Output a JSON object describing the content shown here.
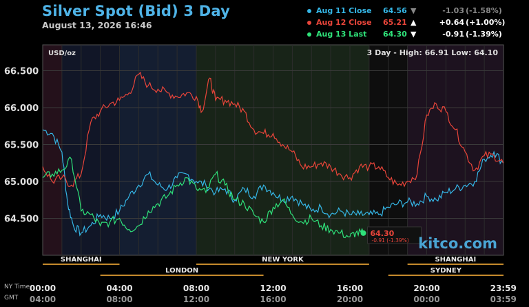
{
  "header": {
    "title": "Silver Spot (Bid) 3 Day",
    "subtitle": "August 13, 2026 16:46"
  },
  "legend": [
    {
      "label": "Aug 11 Close",
      "value": "64.56",
      "arrow": "▼",
      "change": "-1.03",
      "percent": "(-1.58%)",
      "color": "#35b6e6"
    },
    {
      "label": "Aug 12 Close",
      "value": "65.21",
      "arrow": "▲",
      "change": "+0.64",
      "percent": "(+1.00%)",
      "color": "#e9453a"
    },
    {
      "label": "Aug 13 Last",
      "value": "64.30",
      "arrow": "▼",
      "change": "-0.91",
      "percent": "(-1.39%)",
      "color": "#2fe27a"
    }
  ],
  "chart_data": {
    "type": "line",
    "unit_label": "USD/oz",
    "range_text": "3 Day - High: 66.91  Low: 64.10",
    "ylim": [
      64.0,
      66.85
    ],
    "y_ticks": [
      "66.500",
      "66.000",
      "65.500",
      "65.000",
      "64.500"
    ],
    "x_ticks_ny": [
      "00:00",
      "04:00",
      "08:00",
      "12:00",
      "16:00",
      "20:00",
      "23:59"
    ],
    "x_ticks_gmt": [
      "04:00",
      "08:00",
      "12:00",
      "16:00",
      "20:00",
      "00:00",
      "03:59"
    ],
    "tz_labels": [
      "NY Time",
      "GMT"
    ],
    "sessions": [
      {
        "name": "SHANGHAI",
        "start": 0,
        "end": 4,
        "row": 1
      },
      {
        "name": "LONDON",
        "start": 3,
        "end": 11.5,
        "row": 2
      },
      {
        "name": "NEW YORK",
        "start": 8,
        "end": 17,
        "row": 1
      },
      {
        "name": "SYDNEY",
        "start": 18,
        "end": 24,
        "row": 2
      },
      {
        "name": "SHANGHAI",
        "start": 19,
        "end": 24,
        "row": 1
      }
    ],
    "last_label": {
      "price": "64.30",
      "change": "-0.91 (-1.39%)",
      "x": 16.7,
      "y": 64.3
    },
    "watermark": "kitco.com",
    "series": [
      {
        "name": "Aug 11 Close",
        "color": "#35b6e6",
        "x": [
          0,
          0.5,
          1,
          1.3,
          1.6,
          2,
          2.5,
          3,
          3.5,
          4,
          4.5,
          5,
          5.5,
          6,
          6.5,
          7,
          7.5,
          8,
          8.5,
          9,
          9.5,
          10,
          10.5,
          11,
          11.5,
          12,
          12.5,
          13,
          13.5,
          14,
          14.5,
          15,
          15.5,
          16,
          16.5,
          17,
          17.5,
          18,
          18.5,
          19,
          19.5,
          20,
          20.5,
          21,
          21.5,
          22,
          22.5,
          23,
          23.5,
          23.99
        ],
        "y": [
          65.7,
          65.65,
          65.4,
          64.7,
          64.4,
          64.3,
          64.4,
          64.55,
          64.5,
          64.6,
          64.8,
          64.95,
          65.1,
          64.95,
          64.9,
          65.05,
          65.1,
          65.0,
          64.95,
          64.85,
          64.9,
          64.75,
          64.9,
          64.8,
          64.95,
          64.85,
          64.75,
          64.8,
          64.7,
          64.6,
          64.65,
          64.55,
          64.6,
          64.55,
          64.55,
          64.55,
          64.55,
          64.65,
          64.7,
          64.72,
          64.7,
          64.8,
          64.75,
          64.85,
          64.9,
          64.95,
          65.0,
          65.3,
          65.4,
          65.25
        ]
      },
      {
        "name": "Aug 12 Close",
        "color": "#e9453a",
        "x": [
          0,
          0.5,
          1,
          1.5,
          2,
          2.5,
          3,
          3.5,
          4,
          4.5,
          5,
          5.5,
          6,
          6.5,
          7,
          7.5,
          8,
          8.3,
          8.7,
          9,
          9.5,
          10,
          10.5,
          11,
          11.5,
          12,
          12.5,
          13,
          13.5,
          14,
          14.5,
          15,
          15.5,
          16,
          16.5,
          17,
          17.5,
          18,
          18.5,
          19,
          19.5,
          20,
          20.5,
          21,
          21.5,
          22,
          22.5,
          23,
          23.5,
          23.99
        ],
        "y": [
          65.2,
          65.0,
          65.05,
          64.95,
          65.1,
          65.8,
          65.95,
          66.05,
          66.1,
          66.2,
          66.45,
          66.3,
          66.25,
          66.2,
          66.15,
          66.2,
          66.15,
          65.95,
          66.4,
          66.1,
          66.1,
          66.05,
          65.95,
          65.7,
          65.65,
          65.65,
          65.5,
          65.4,
          65.2,
          65.2,
          65.25,
          65.2,
          65.1,
          65.05,
          65.2,
          65.2,
          65.2,
          65.05,
          64.95,
          65.0,
          65.1,
          65.9,
          66.05,
          65.95,
          65.7,
          65.4,
          65.15,
          65.35,
          65.35,
          65.25
        ]
      },
      {
        "name": "Aug 13 Last",
        "color": "#2fe27a",
        "x": [
          0,
          0.5,
          1,
          1.5,
          2,
          2.5,
          3,
          3.5,
          4,
          4.5,
          5,
          5.5,
          6,
          6.5,
          7,
          7.5,
          8,
          8.5,
          9,
          9.5,
          10,
          10.5,
          11,
          11.5,
          12,
          12.5,
          13,
          13.5,
          14,
          14.5,
          15,
          15.5,
          16,
          16.3,
          16.7
        ],
        "y": [
          65.05,
          65.1,
          65.15,
          65.3,
          64.6,
          64.55,
          64.4,
          64.45,
          64.5,
          64.35,
          64.4,
          64.6,
          64.7,
          64.8,
          64.95,
          65.05,
          64.9,
          64.85,
          65.1,
          64.95,
          64.75,
          64.7,
          64.55,
          64.45,
          64.65,
          64.75,
          64.55,
          64.45,
          64.5,
          64.4,
          64.35,
          64.3,
          64.25,
          64.3,
          64.3
        ]
      }
    ]
  }
}
